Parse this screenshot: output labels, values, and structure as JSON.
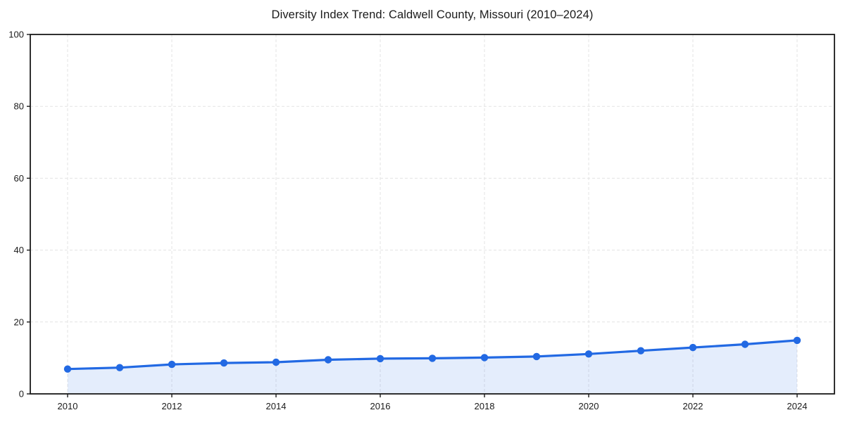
{
  "page": {
    "background_color": "#ffffff"
  },
  "chart_data": {
    "type": "line",
    "title": "Diversity Index Trend: Caldwell County, Missouri (2010–2024)",
    "series_name": "Diversity Index",
    "x": [
      2010,
      2011,
      2012,
      2013,
      2014,
      2015,
      2016,
      2017,
      2018,
      2019,
      2020,
      2021,
      2022,
      2023,
      2024
    ],
    "values": [
      6.9,
      7.3,
      8.2,
      8.6,
      8.8,
      9.5,
      9.8,
      9.9,
      10.1,
      10.4,
      11.1,
      12.0,
      12.9,
      13.8,
      14.9
    ],
    "xlabel": "",
    "ylabel": "",
    "ylim": [
      0,
      100
    ],
    "xticks": [
      2010,
      2012,
      2014,
      2016,
      2018,
      2020,
      2022,
      2024
    ],
    "yticks": [
      0,
      20,
      40,
      60,
      80,
      100
    ],
    "grid": true,
    "grid_style": "dashed",
    "legend_position": "none",
    "marker": "circle",
    "area_fill": true,
    "colors": {
      "line": "#2269e3",
      "marker": "#2269e3",
      "area_fill": "rgba(34, 105, 227, 0.12)",
      "grid": "#e3e3e3",
      "axis_box": "#1a1a1a",
      "tick_text": "#1a1a1a",
      "title_text": "#1a1a1a"
    }
  }
}
